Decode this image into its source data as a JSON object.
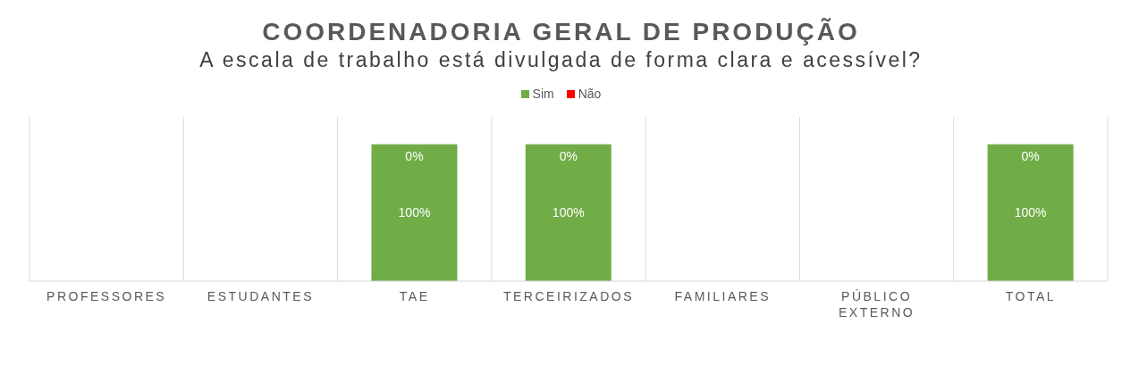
{
  "chart_data": {
    "type": "bar",
    "title": "COORDENADORIA GERAL DE PRODUÇÃO",
    "subtitle": "A escala de trabalho está divulgada de forma clara e acessível?",
    "categories": [
      "PROFESSORES",
      "ESTUDANTES",
      "TAE",
      "TERCEIRIZADOS",
      "FAMILIARES",
      "PÚBLICO EXTERNO",
      "TOTAL"
    ],
    "series": [
      {
        "name": "Sim",
        "color": "#70ad47",
        "values": [
          null,
          null,
          100,
          100,
          null,
          null,
          100
        ],
        "value_labels": [
          null,
          null,
          "100%",
          "100%",
          null,
          null,
          "100%"
        ]
      },
      {
        "name": "Não",
        "color": "#ff0000",
        "values": [
          null,
          null,
          0,
          0,
          null,
          null,
          0
        ],
        "value_labels": [
          null,
          null,
          "0%",
          "0%",
          null,
          null,
          "0%"
        ]
      }
    ],
    "stacked": true,
    "ylim": [
      0,
      120
    ],
    "tick_labels": "x",
    "grid": "x",
    "legend": "top"
  }
}
